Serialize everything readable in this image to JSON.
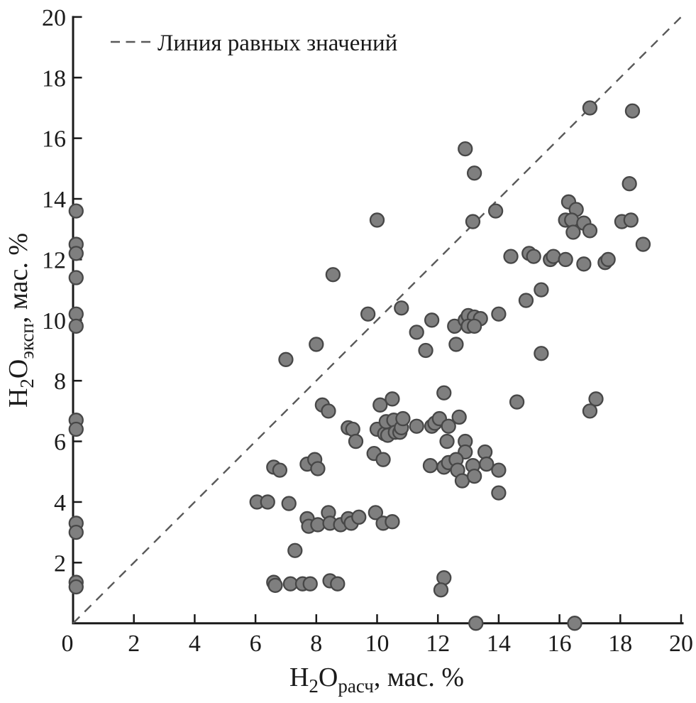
{
  "chart_data": {
    "type": "scatter",
    "title": "",
    "xlabel": {
      "h": "H",
      "sub2": "2",
      "o": "O",
      "subname": "расч",
      "rest": ", мас. %"
    },
    "ylabel": {
      "h": "H",
      "sub2": "2",
      "o": "O",
      "subname": "эксп",
      "rest": ", мас. %"
    },
    "legend": {
      "label": "Линия равных значений",
      "line_style": "dashed",
      "position": "upper-left"
    },
    "xlim": [
      0,
      20
    ],
    "ylim": [
      0,
      20
    ],
    "xticks": [
      0,
      2,
      4,
      6,
      8,
      10,
      12,
      14,
      16,
      18,
      20
    ],
    "yticks": [
      2,
      4,
      6,
      8,
      10,
      12,
      14,
      16,
      18,
      20
    ],
    "grid": false,
    "identity_line": {
      "from": [
        0,
        0
      ],
      "to": [
        20,
        20
      ]
    },
    "colors": {
      "marker_fill": "#7f7f7f",
      "marker_edge": "#474747",
      "line": "#595959",
      "axis": "#1a1a1a"
    },
    "marker_radius": 9.5,
    "points": [
      [
        0.1,
        13.6
      ],
      [
        0.1,
        12.5
      ],
      [
        0.1,
        12.2
      ],
      [
        0.1,
        11.4
      ],
      [
        0.1,
        10.2
      ],
      [
        0.1,
        9.8
      ],
      [
        0.1,
        6.7
      ],
      [
        0.1,
        6.4
      ],
      [
        0.1,
        3.3
      ],
      [
        0.1,
        3.0
      ],
      [
        0.1,
        1.35
      ],
      [
        0.1,
        1.2
      ],
      [
        17.0,
        17.0
      ],
      [
        18.4,
        16.9
      ],
      [
        12.9,
        15.65
      ],
      [
        13.2,
        14.85
      ],
      [
        18.3,
        14.5
      ],
      [
        16.3,
        13.9
      ],
      [
        16.55,
        13.65
      ],
      [
        13.9,
        13.6
      ],
      [
        13.15,
        13.25
      ],
      [
        10.0,
        13.3
      ],
      [
        16.2,
        13.3
      ],
      [
        16.4,
        13.3
      ],
      [
        16.8,
        13.2
      ],
      [
        16.45,
        12.9
      ],
      [
        17.0,
        12.95
      ],
      [
        18.05,
        13.25
      ],
      [
        18.35,
        13.3
      ],
      [
        18.75,
        12.5
      ],
      [
        14.4,
        12.1
      ],
      [
        15.0,
        12.2
      ],
      [
        15.15,
        12.1
      ],
      [
        15.7,
        12.0
      ],
      [
        15.8,
        12.1
      ],
      [
        16.2,
        12.0
      ],
      [
        16.8,
        11.85
      ],
      [
        17.5,
        11.9
      ],
      [
        17.6,
        12.0
      ],
      [
        8.55,
        11.5
      ],
      [
        15.4,
        11.0
      ],
      [
        9.7,
        10.2
      ],
      [
        10.8,
        10.4
      ],
      [
        14.9,
        10.65
      ],
      [
        14.0,
        10.2
      ],
      [
        12.55,
        9.8
      ],
      [
        12.9,
        10.0
      ],
      [
        13.0,
        10.15
      ],
      [
        13.2,
        10.1
      ],
      [
        13.4,
        10.05
      ],
      [
        13.0,
        9.8
      ],
      [
        13.2,
        9.8
      ],
      [
        11.8,
        10.0
      ],
      [
        11.3,
        9.6
      ],
      [
        12.6,
        9.2
      ],
      [
        11.6,
        9.0
      ],
      [
        15.4,
        8.9
      ],
      [
        7.0,
        8.7
      ],
      [
        8.0,
        9.2
      ],
      [
        12.2,
        7.6
      ],
      [
        10.5,
        7.4
      ],
      [
        10.1,
        7.2
      ],
      [
        8.2,
        7.2
      ],
      [
        8.4,
        7.0
      ],
      [
        14.6,
        7.3
      ],
      [
        17.2,
        7.4
      ],
      [
        17.0,
        7.0
      ],
      [
        9.05,
        6.45
      ],
      [
        9.2,
        6.4
      ],
      [
        10.0,
        6.4
      ],
      [
        10.25,
        6.25
      ],
      [
        10.35,
        6.2
      ],
      [
        10.3,
        6.65
      ],
      [
        10.55,
        6.7
      ],
      [
        10.6,
        6.3
      ],
      [
        10.75,
        6.3
      ],
      [
        10.8,
        6.45
      ],
      [
        10.85,
        6.75
      ],
      [
        11.3,
        6.5
      ],
      [
        11.8,
        6.5
      ],
      [
        11.9,
        6.6
      ],
      [
        12.05,
        6.75
      ],
      [
        12.35,
        6.5
      ],
      [
        12.7,
        6.8
      ],
      [
        9.3,
        6.0
      ],
      [
        9.9,
        5.6
      ],
      [
        10.2,
        5.4
      ],
      [
        12.3,
        6.0
      ],
      [
        12.9,
        6.0
      ],
      [
        12.9,
        5.65
      ],
      [
        13.55,
        5.65
      ],
      [
        11.75,
        5.2
      ],
      [
        12.2,
        5.15
      ],
      [
        12.35,
        5.3
      ],
      [
        12.6,
        5.4
      ],
      [
        12.65,
        5.05
      ],
      [
        12.8,
        4.7
      ],
      [
        13.15,
        5.2
      ],
      [
        13.2,
        4.85
      ],
      [
        13.6,
        5.25
      ],
      [
        14.0,
        5.05
      ],
      [
        14.0,
        4.3
      ],
      [
        6.6,
        5.15
      ],
      [
        6.8,
        5.05
      ],
      [
        7.7,
        5.25
      ],
      [
        7.95,
        5.4
      ],
      [
        8.05,
        5.1
      ],
      [
        6.05,
        4.0
      ],
      [
        6.4,
        4.0
      ],
      [
        7.1,
        3.95
      ],
      [
        7.7,
        3.45
      ],
      [
        7.75,
        3.2
      ],
      [
        8.05,
        3.25
      ],
      [
        8.4,
        3.65
      ],
      [
        8.45,
        3.3
      ],
      [
        8.8,
        3.25
      ],
      [
        9.05,
        3.45
      ],
      [
        9.15,
        3.3
      ],
      [
        9.4,
        3.5
      ],
      [
        9.95,
        3.65
      ],
      [
        10.2,
        3.3
      ],
      [
        10.5,
        3.35
      ],
      [
        7.3,
        2.4
      ],
      [
        12.2,
        1.5
      ],
      [
        12.1,
        1.1
      ],
      [
        6.6,
        1.35
      ],
      [
        6.65,
        1.25
      ],
      [
        7.15,
        1.3
      ],
      [
        7.55,
        1.3
      ],
      [
        7.8,
        1.3
      ],
      [
        8.45,
        1.4
      ],
      [
        8.7,
        1.3
      ],
      [
        13.25,
        0
      ],
      [
        16.5,
        0
      ]
    ]
  }
}
